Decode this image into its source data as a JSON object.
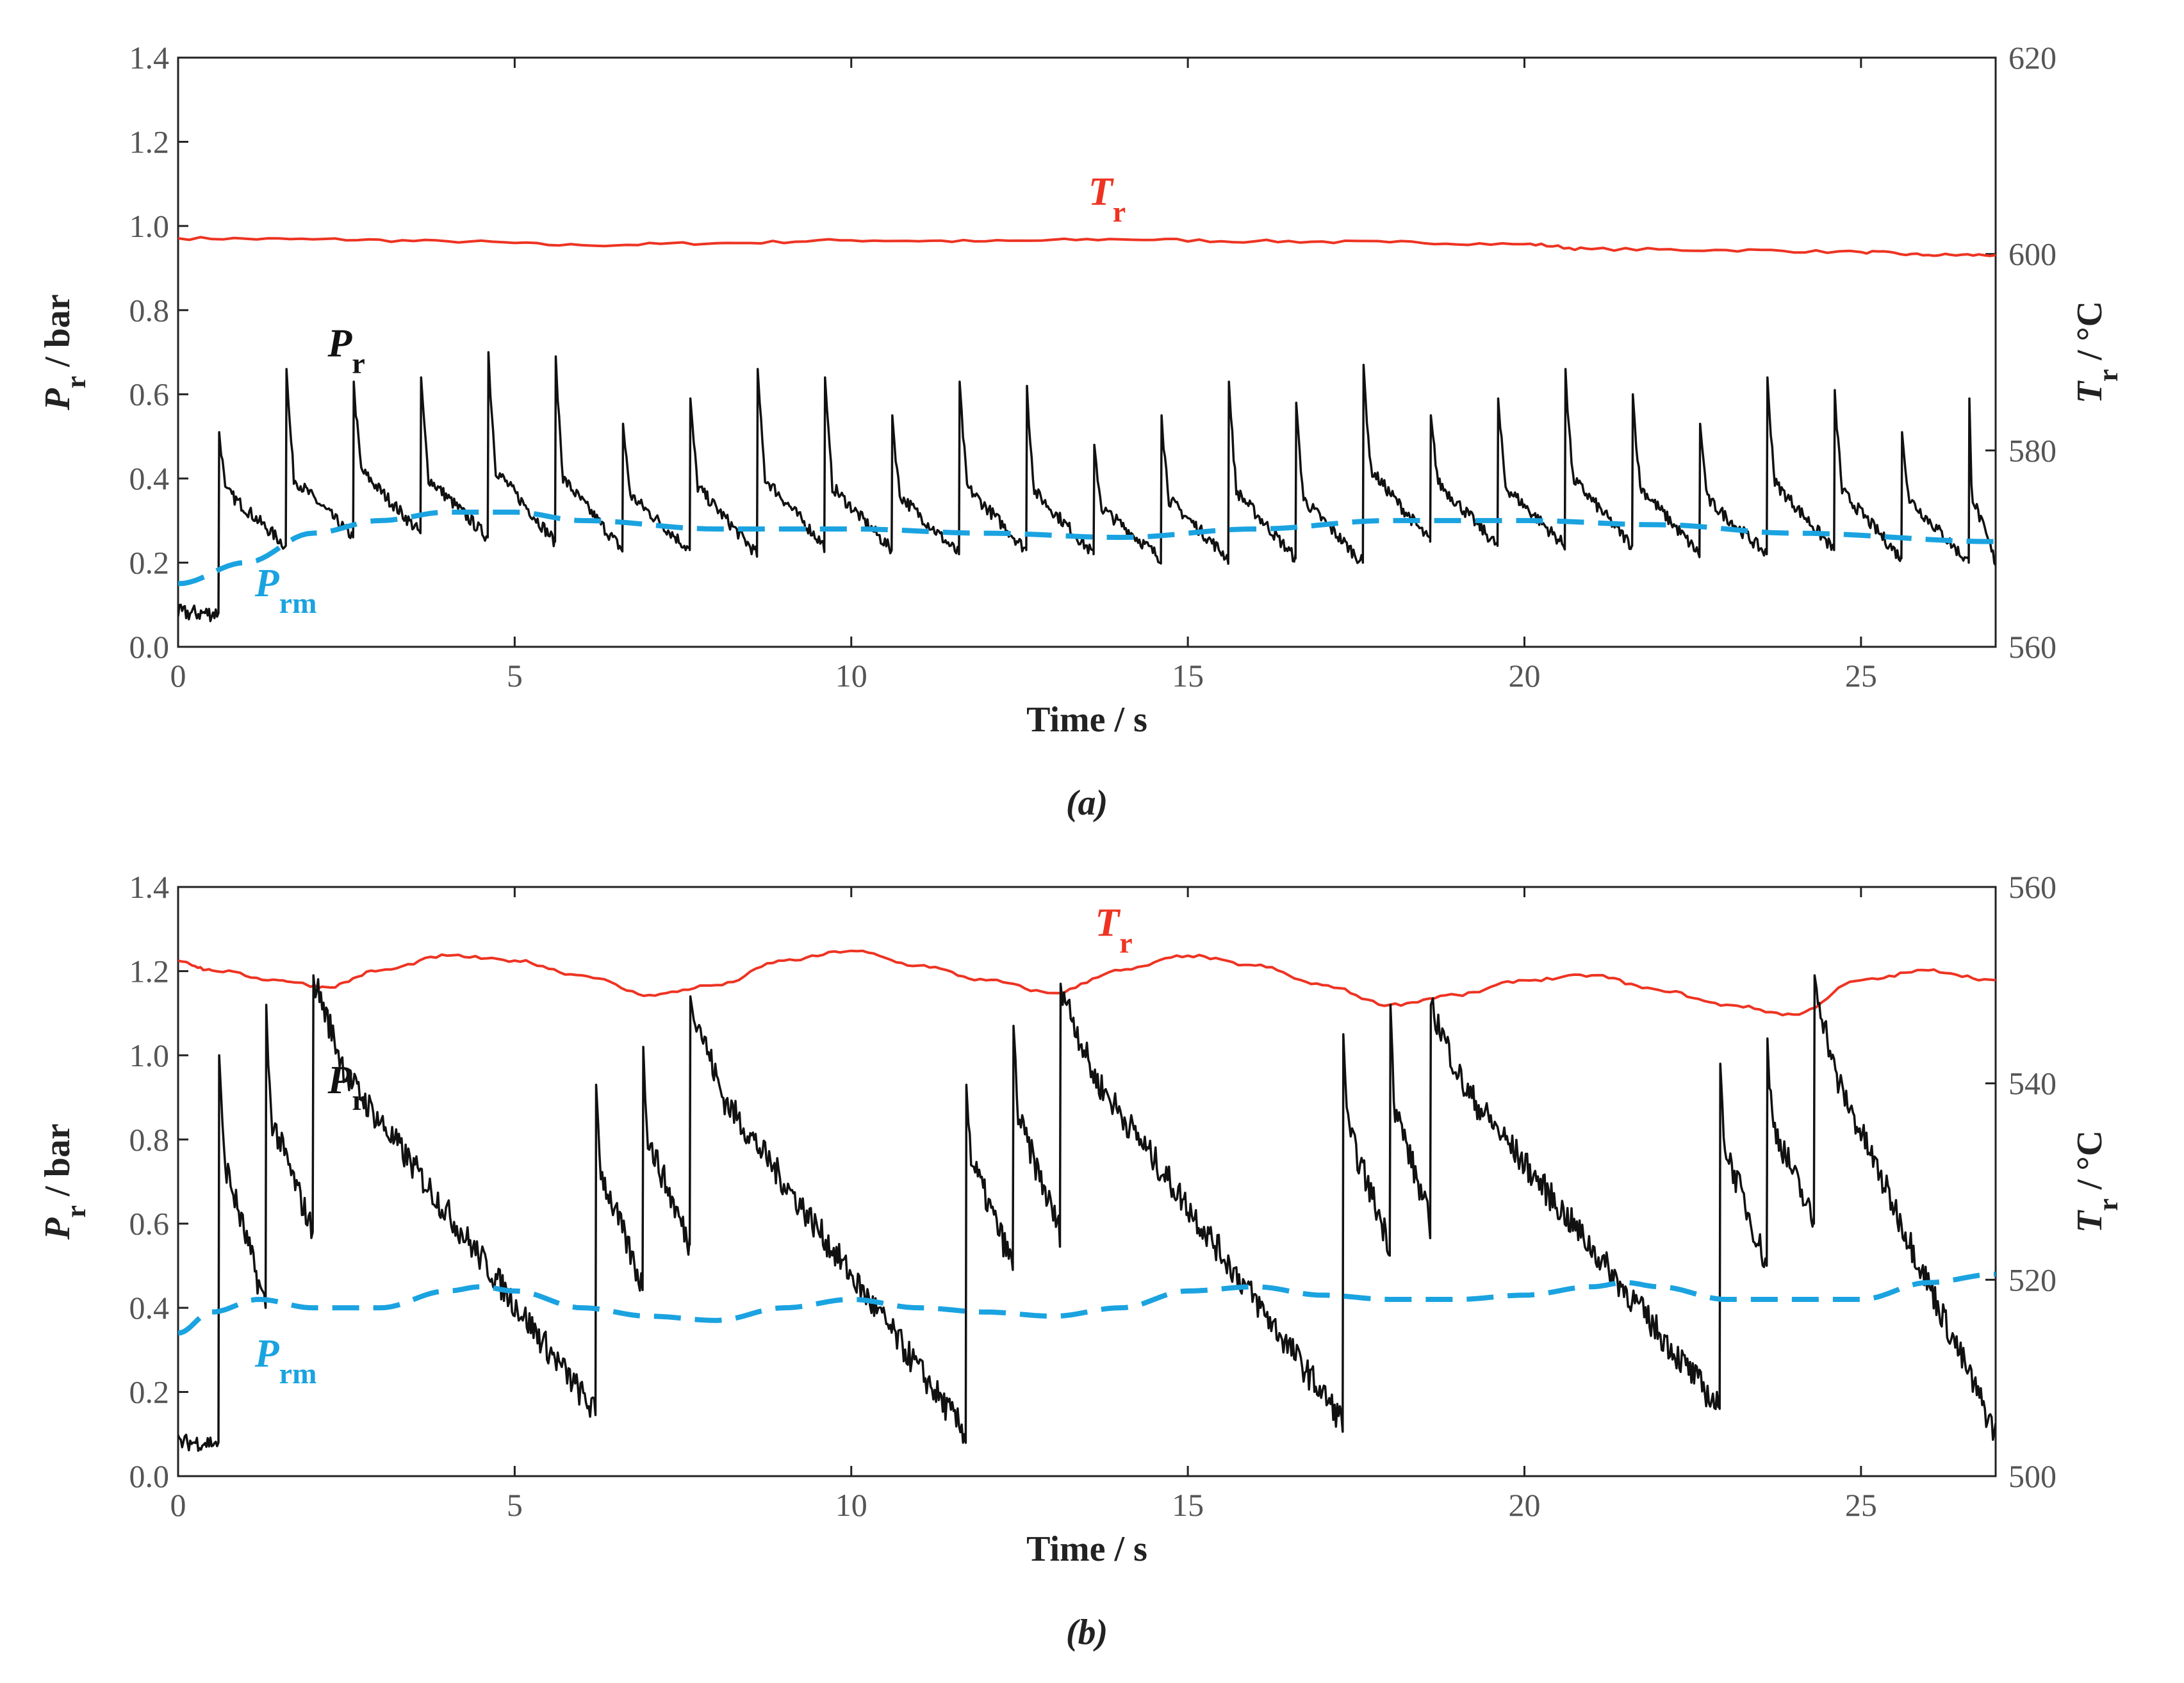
{
  "chart_data": [
    {
      "type": "line",
      "panel_label": "(a)",
      "xlabel": "Time / s",
      "ylabel_left": "Pr / bar",
      "ylabel_right": "Tr / °C",
      "xlim": [
        0,
        27
      ],
      "ylim_left": [
        0.0,
        1.4
      ],
      "ylim_right": [
        560,
        620
      ],
      "xticks": [
        "0",
        "5",
        "10",
        "15",
        "20",
        "25"
      ],
      "yticks_left": [
        "0.0",
        "0.2",
        "0.4",
        "0.6",
        "0.8",
        "1.0",
        "1.2",
        "1.4"
      ],
      "yticks_right": [
        "560",
        "580",
        "600",
        "620"
      ],
      "series": [
        {
          "name": "Tr",
          "axis": "right",
          "color": "#ee3322",
          "style": "solid",
          "x": [
            0,
            2,
            4,
            6,
            8,
            10,
            12,
            14,
            16,
            18,
            20,
            21,
            23,
            25,
            26,
            27
          ],
          "y": [
            601.6,
            601.5,
            601.3,
            600.9,
            601.1,
            601.4,
            601.3,
            601.5,
            601.3,
            601.2,
            601.0,
            600.5,
            600.4,
            600.2,
            599.9,
            599.9
          ]
        },
        {
          "name": "Pr",
          "axis": "left",
          "color": "#111111",
          "style": "solid",
          "start": 0.08,
          "pulses": [
            {
              "t": 0.6,
              "peak": 0.51,
              "base": 0.37,
              "end": 0.24
            },
            {
              "t": 1.6,
              "peak": 0.66,
              "base": 0.4,
              "end": 0.26
            },
            {
              "t": 2.6,
              "peak": 0.63,
              "base": 0.42,
              "end": 0.27
            },
            {
              "t": 3.6,
              "peak": 0.64,
              "base": 0.4,
              "end": 0.26
            },
            {
              "t": 4.6,
              "peak": 0.7,
              "base": 0.42,
              "end": 0.25
            },
            {
              "t": 5.6,
              "peak": 0.69,
              "base": 0.4,
              "end": 0.23
            },
            {
              "t": 6.6,
              "peak": 0.53,
              "base": 0.36,
              "end": 0.23
            },
            {
              "t": 7.6,
              "peak": 0.59,
              "base": 0.38,
              "end": 0.22
            },
            {
              "t": 8.6,
              "peak": 0.66,
              "base": 0.4,
              "end": 0.24
            },
            {
              "t": 9.6,
              "peak": 0.64,
              "base": 0.38,
              "end": 0.23
            },
            {
              "t": 10.6,
              "peak": 0.55,
              "base": 0.36,
              "end": 0.22
            },
            {
              "t": 11.6,
              "peak": 0.63,
              "base": 0.38,
              "end": 0.23
            },
            {
              "t": 12.6,
              "peak": 0.62,
              "base": 0.37,
              "end": 0.22
            },
            {
              "t": 13.6,
              "peak": 0.48,
              "base": 0.33,
              "end": 0.21
            },
            {
              "t": 14.6,
              "peak": 0.55,
              "base": 0.35,
              "end": 0.21
            },
            {
              "t": 15.6,
              "peak": 0.63,
              "base": 0.37,
              "end": 0.21
            },
            {
              "t": 16.6,
              "peak": 0.58,
              "base": 0.35,
              "end": 0.2
            },
            {
              "t": 17.6,
              "peak": 0.67,
              "base": 0.42,
              "end": 0.25
            },
            {
              "t": 18.6,
              "peak": 0.55,
              "base": 0.39,
              "end": 0.24
            },
            {
              "t": 19.6,
              "peak": 0.59,
              "base": 0.38,
              "end": 0.24
            },
            {
              "t": 20.6,
              "peak": 0.66,
              "base": 0.4,
              "end": 0.24
            },
            {
              "t": 21.6,
              "peak": 0.6,
              "base": 0.38,
              "end": 0.22
            },
            {
              "t": 22.6,
              "peak": 0.53,
              "base": 0.35,
              "end": 0.22
            },
            {
              "t": 23.6,
              "peak": 0.64,
              "base": 0.39,
              "end": 0.23
            },
            {
              "t": 24.6,
              "peak": 0.61,
              "base": 0.37,
              "end": 0.21
            },
            {
              "t": 25.6,
              "peak": 0.51,
              "base": 0.35,
              "end": 0.2
            },
            {
              "t": 26.6,
              "peak": 0.59,
              "base": 0.36,
              "end": 0.2
            }
          ]
        },
        {
          "name": "Prm",
          "axis": "left",
          "color": "#1aa3e0",
          "style": "dashed",
          "x": [
            0,
            1,
            2,
            3,
            4,
            5,
            6,
            8,
            10,
            12,
            14,
            16,
            18,
            20,
            22,
            24,
            27
          ],
          "y": [
            0.15,
            0.2,
            0.27,
            0.3,
            0.32,
            0.32,
            0.3,
            0.28,
            0.28,
            0.27,
            0.26,
            0.28,
            0.3,
            0.3,
            0.29,
            0.27,
            0.25
          ]
        }
      ],
      "labels": [
        {
          "series": "Tr",
          "main": "T",
          "sub": "r",
          "x": 13.8,
          "y_right": 605.0
        },
        {
          "series": "Pr",
          "main": "P",
          "sub": "r",
          "x": 2.5,
          "y": 0.69
        },
        {
          "series": "Prm",
          "main": "P",
          "sub": "rm",
          "x": 1.6,
          "y": 0.12
        }
      ]
    },
    {
      "type": "line",
      "panel_label": "(b)",
      "xlabel": "Time / s",
      "ylabel_left": "Pr / bar",
      "ylabel_right": "Tr / °C",
      "xlim": [
        0,
        27
      ],
      "ylim_left": [
        0.0,
        1.4
      ],
      "ylim_right": [
        500,
        560
      ],
      "xticks": [
        "0",
        "5",
        "10",
        "15",
        "20",
        "25"
      ],
      "yticks_left": [
        "0.0",
        "0.2",
        "0.4",
        "0.6",
        "0.8",
        "1.0",
        "1.2",
        "1.4"
      ],
      "yticks_right": [
        "500",
        "520",
        "540",
        "560"
      ],
      "series": [
        {
          "name": "Tr",
          "axis": "right",
          "color": "#ee3322",
          "style": "solid",
          "x": [
            0,
            0.5,
            1.5,
            2.2,
            3,
            4,
            5,
            6,
            7,
            8,
            9,
            10,
            11,
            12,
            13,
            14,
            15,
            16,
            17,
            18,
            19,
            20,
            21,
            22,
            23,
            24,
            25,
            26,
            27
          ],
          "y": [
            552.5,
            551.5,
            550.5,
            549.8,
            551.5,
            553.0,
            552.5,
            551.0,
            549.0,
            550.0,
            552.5,
            553.5,
            552.0,
            550.5,
            549.2,
            551.5,
            553.0,
            552.0,
            550.0,
            548.0,
            549.0,
            550.5,
            551.0,
            549.5,
            548.0,
            547.0,
            550.5,
            551.5,
            550.5
          ]
        },
        {
          "name": "Pr",
          "axis": "left",
          "color": "#111111",
          "style": "solid",
          "start": 0.08,
          "pulses": [
            {
              "t": 0.6,
              "peak": 1.0,
              "base": 0.75,
              "end": 0.4
            },
            {
              "t": 1.3,
              "peak": 1.12,
              "base": 0.85,
              "end": 0.58
            },
            {
              "t": 2.0,
              "peak": 1.19,
              "base": 0.95,
              "end": 0.15
            },
            {
              "t": 6.2,
              "peak": 0.93,
              "base": 0.72,
              "end": 0.45
            },
            {
              "t": 6.9,
              "peak": 1.02,
              "base": 0.8,
              "end": 0.55
            },
            {
              "t": 7.6,
              "peak": 1.14,
              "base": 0.9,
              "end": 0.1
            },
            {
              "t": 11.7,
              "peak": 0.93,
              "base": 0.75,
              "end": 0.5
            },
            {
              "t": 12.4,
              "peak": 1.07,
              "base": 0.85,
              "end": 0.58
            },
            {
              "t": 13.1,
              "peak": 1.17,
              "base": 0.95,
              "end": 0.13
            },
            {
              "t": 17.3,
              "peak": 1.05,
              "base": 0.82,
              "end": 0.55
            },
            {
              "t": 18.0,
              "peak": 1.12,
              "base": 0.88,
              "end": 0.6
            },
            {
              "t": 18.6,
              "peak": 1.12,
              "base": 0.92,
              "end": 0.16
            },
            {
              "t": 22.9,
              "peak": 0.98,
              "base": 0.78,
              "end": 0.5
            },
            {
              "t": 23.6,
              "peak": 1.04,
              "base": 0.84,
              "end": 0.6
            },
            {
              "t": 24.3,
              "peak": 1.19,
              "base": 0.95,
              "end": 0.1
            }
          ]
        },
        {
          "name": "Prm",
          "axis": "left",
          "color": "#1aa3e0",
          "style": "dashed",
          "x": [
            0,
            0.5,
            1.2,
            2,
            3,
            4,
            4.5,
            5,
            6,
            7,
            8,
            9,
            10,
            11,
            12,
            13,
            14,
            15,
            16,
            17,
            18,
            19,
            20,
            21,
            21.5,
            22,
            23,
            24,
            25,
            26,
            27
          ],
          "y": [
            0.34,
            0.39,
            0.42,
            0.4,
            0.4,
            0.44,
            0.45,
            0.44,
            0.4,
            0.38,
            0.37,
            0.4,
            0.42,
            0.4,
            0.39,
            0.38,
            0.4,
            0.44,
            0.45,
            0.43,
            0.42,
            0.42,
            0.43,
            0.45,
            0.46,
            0.45,
            0.42,
            0.42,
            0.42,
            0.46,
            0.48
          ]
        }
      ],
      "labels": [
        {
          "series": "Tr",
          "main": "T",
          "sub": "r",
          "x": 13.9,
          "y_right": 555.0
        },
        {
          "series": "Pr",
          "main": "P",
          "sub": "r",
          "x": 2.5,
          "y": 0.91
        },
        {
          "series": "Prm",
          "main": "P",
          "sub": "rm",
          "x": 1.6,
          "y": 0.26
        }
      ]
    }
  ]
}
